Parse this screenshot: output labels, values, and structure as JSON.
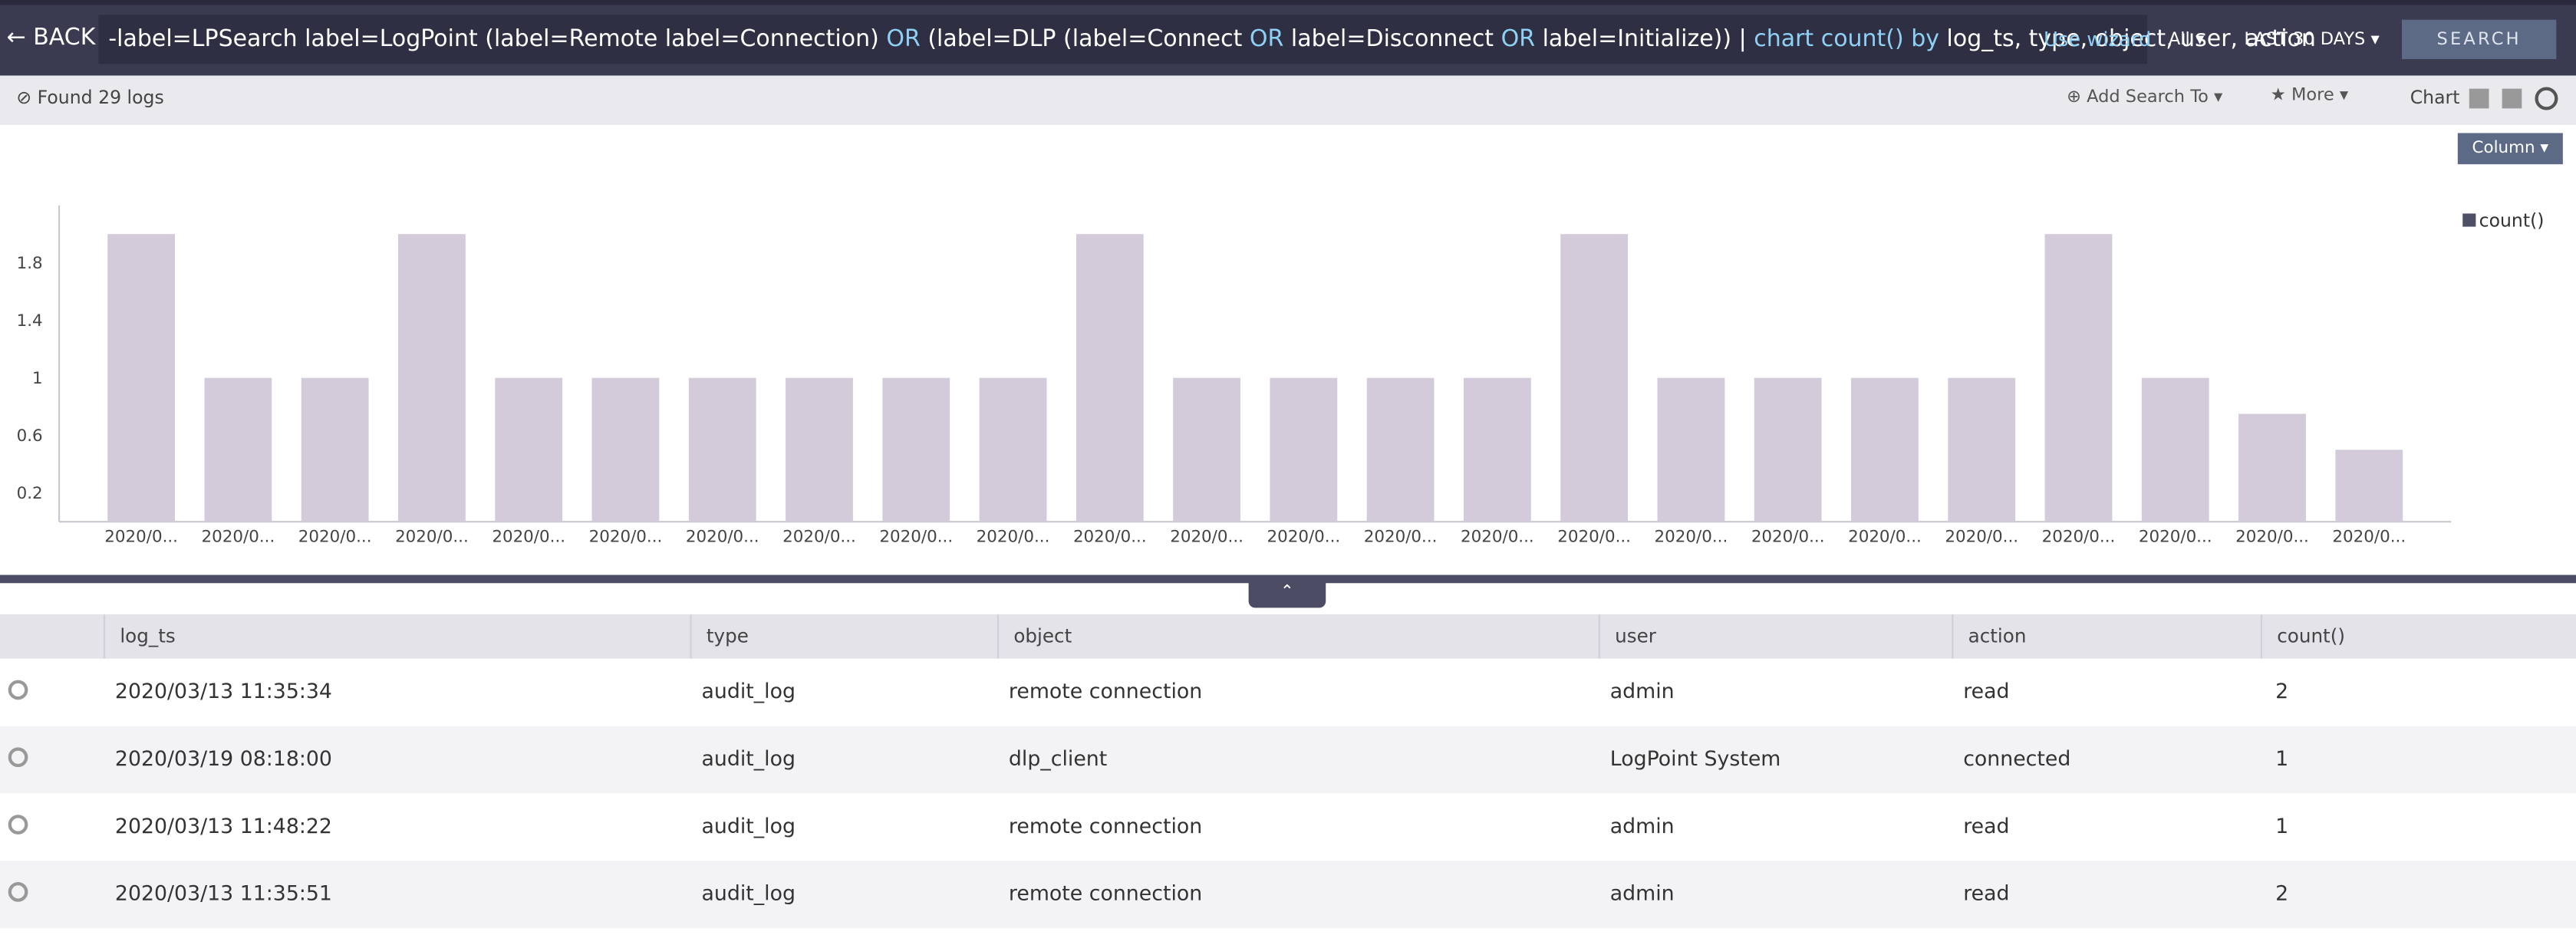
{
  "header": {
    "back": "BACK",
    "query": [
      {
        "text": "-label=LPSearch label=LogPoint (label=Remote label=Connection) ",
        "color": "#ffffff"
      },
      {
        "text": "OR",
        "color": "#8fd0f5"
      },
      {
        "text": " (label=DLP (label=Connect ",
        "color": "#ffffff"
      },
      {
        "text": "OR",
        "color": "#8fd0f5"
      },
      {
        "text": " label=Disconnect ",
        "color": "#ffffff"
      },
      {
        "text": "OR",
        "color": "#8fd0f5"
      },
      {
        "text": " label=Initialize)) | ",
        "color": "#ffffff"
      },
      {
        "text": "chart count() by",
        "color": "#8fd0f5"
      },
      {
        "text": " log_ts, type, object, user, action",
        "color": "#ffffff"
      }
    ],
    "wizard": "Use wizard",
    "repo": "All",
    "time_range": "LAST 30 DAYS",
    "search": "SEARCH"
  },
  "status": {
    "found": "Found 29 logs",
    "add_search": "Add Search To",
    "more": "More",
    "chart": "Chart",
    "chart_type": "Column"
  },
  "chart_data": {
    "type": "bar",
    "categories": [
      "2020/0...",
      "2020/0...",
      "2020/0...",
      "2020/0...",
      "2020/0...",
      "2020/0...",
      "2020/0...",
      "2020/0...",
      "2020/0...",
      "2020/0...",
      "2020/0...",
      "2020/0...",
      "2020/0...",
      "2020/0...",
      "2020/0...",
      "2020/0...",
      "2020/0...",
      "2020/0...",
      "2020/0...",
      "2020/0...",
      "2020/0...",
      "2020/0...",
      "2020/0...",
      "2020/0..."
    ],
    "series": [
      {
        "name": "count()",
        "color": "#d3cbd9",
        "values": [
          2,
          1,
          1,
          2,
          1,
          1,
          1,
          1,
          1,
          1,
          2,
          1,
          1,
          1,
          1,
          2,
          1,
          1,
          1,
          1,
          2,
          1,
          0.75,
          0.5
        ]
      }
    ],
    "ylim": [
      0,
      2.2
    ],
    "yticks": [
      0.2,
      0.6,
      1,
      1.4,
      1.8
    ],
    "grid": false,
    "legend": "top-right"
  },
  "table": {
    "columns": [
      "log_ts",
      "type",
      "object",
      "user",
      "action",
      "count()"
    ],
    "rows": [
      [
        "2020/03/13 11:35:34",
        "audit_log",
        "remote connection",
        "admin",
        "read",
        "2"
      ],
      [
        "2020/03/19 08:18:00",
        "audit_log",
        "dlp_client",
        "LogPoint System",
        "connected",
        "1"
      ],
      [
        "2020/03/13 11:48:22",
        "audit_log",
        "remote connection",
        "admin",
        "read",
        "1"
      ],
      [
        "2020/03/13 11:35:51",
        "audit_log",
        "remote connection",
        "admin",
        "read",
        "2"
      ]
    ]
  }
}
